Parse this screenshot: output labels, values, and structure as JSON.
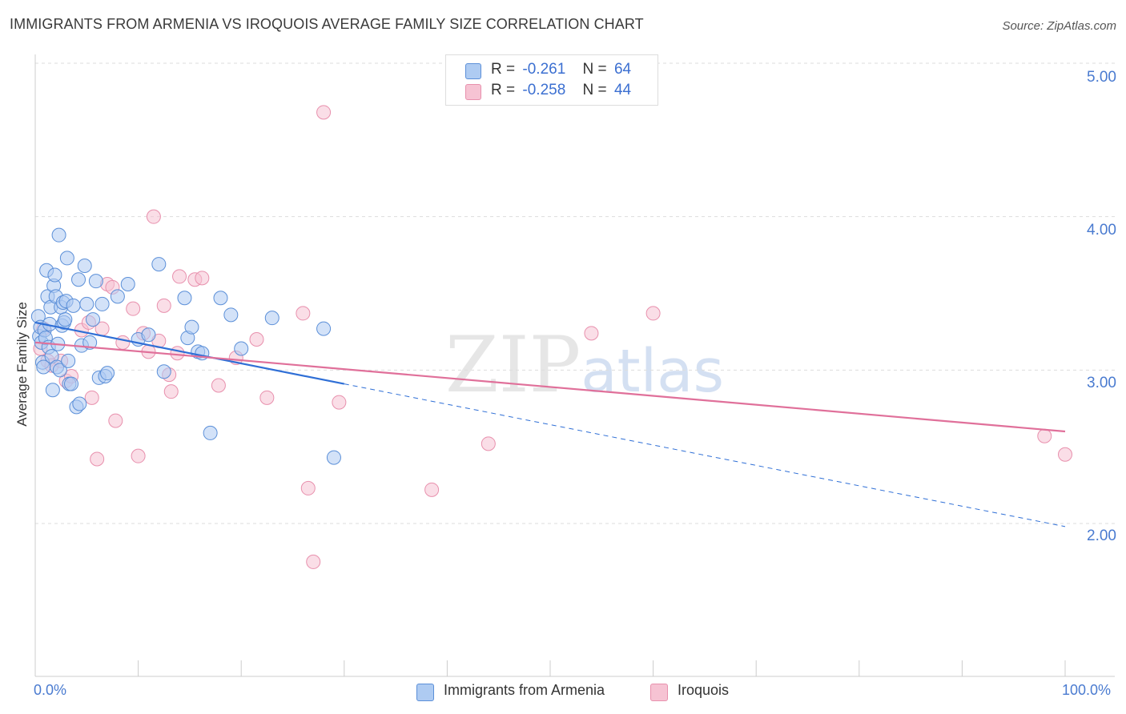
{
  "header": {
    "title": "IMMIGRANTS FROM ARMENIA VS IROQUOIS AVERAGE FAMILY SIZE CORRELATION CHART",
    "source": "Source: ZipAtlas.com"
  },
  "legend": {
    "rows": [
      {
        "r_label": "R =",
        "r_value": "-0.261",
        "n_label": "N =",
        "n_value": "64"
      },
      {
        "r_label": "R =",
        "r_value": "-0.258",
        "n_label": "N =",
        "n_value": "44"
      }
    ]
  },
  "watermark": {
    "zip": "ZIP",
    "atlas": "atlas"
  },
  "colors": {
    "blue_fill": "#aecbf2",
    "blue_stroke": "#5b8fd8",
    "blue_line": "#2f6fd6",
    "pink_fill": "#f6c3d3",
    "pink_stroke": "#e890ad",
    "pink_line": "#e0709a",
    "grid": "#dddddd",
    "axis_text": "#4a7bd0"
  },
  "chart_data": {
    "type": "scatter",
    "title": "IMMIGRANTS FROM ARMENIA VS IROQUOIS AVERAGE FAMILY SIZE CORRELATION CHART",
    "xlabel": "",
    "ylabel": "Average Family Size",
    "xlim": [
      0,
      100
    ],
    "ylim": [
      1.0,
      5.2
    ],
    "x_tick_labels": [
      "0.0%",
      "100.0%"
    ],
    "y_ticks": [
      2.0,
      3.0,
      4.0,
      5.0
    ],
    "y_tick_labels": [
      "2.00",
      "3.00",
      "4.00",
      "5.00"
    ],
    "grid": "horizontal dashed",
    "legend_position": "top-center",
    "series": [
      {
        "name": "Immigrants from Armenia",
        "color": "#aecbf2",
        "trend": {
          "x0": 0,
          "y0": 3.31,
          "x1": 30,
          "y1": 2.91,
          "dashed_to_x": 100,
          "dashed_to_y": 1.98
        },
        "points": [
          [
            0.3,
            3.35
          ],
          [
            0.4,
            3.22
          ],
          [
            0.5,
            3.28
          ],
          [
            0.6,
            3.18
          ],
          [
            0.7,
            3.05
          ],
          [
            0.8,
            3.02
          ],
          [
            0.9,
            3.26
          ],
          [
            1.0,
            3.21
          ],
          [
            1.1,
            3.65
          ],
          [
            1.2,
            3.48
          ],
          [
            1.3,
            3.15
          ],
          [
            1.4,
            3.3
          ],
          [
            1.5,
            3.41
          ],
          [
            1.6,
            3.09
          ],
          [
            1.7,
            2.87
          ],
          [
            1.8,
            3.55
          ],
          [
            1.9,
            3.62
          ],
          [
            2.0,
            3.48
          ],
          [
            2.1,
            3.02
          ],
          [
            2.2,
            3.17
          ],
          [
            2.3,
            3.88
          ],
          [
            2.4,
            3.0
          ],
          [
            2.5,
            3.41
          ],
          [
            2.6,
            3.29
          ],
          [
            2.7,
            3.44
          ],
          [
            2.8,
            3.31
          ],
          [
            2.9,
            3.33
          ],
          [
            3.0,
            3.45
          ],
          [
            3.1,
            3.73
          ],
          [
            3.2,
            3.06
          ],
          [
            3.3,
            2.91
          ],
          [
            3.5,
            2.91
          ],
          [
            3.7,
            3.42
          ],
          [
            4.0,
            2.76
          ],
          [
            4.2,
            3.59
          ],
          [
            4.3,
            2.78
          ],
          [
            4.5,
            3.16
          ],
          [
            4.8,
            3.68
          ],
          [
            5.0,
            3.43
          ],
          [
            5.3,
            3.18
          ],
          [
            5.6,
            3.33
          ],
          [
            5.9,
            3.58
          ],
          [
            6.2,
            2.95
          ],
          [
            6.5,
            3.43
          ],
          [
            6.8,
            2.96
          ],
          [
            7.0,
            2.98
          ],
          [
            8.0,
            3.48
          ],
          [
            9.0,
            3.56
          ],
          [
            10.0,
            3.2
          ],
          [
            11.0,
            3.23
          ],
          [
            12.0,
            3.69
          ],
          [
            12.5,
            2.99
          ],
          [
            14.5,
            3.47
          ],
          [
            14.8,
            3.21
          ],
          [
            15.2,
            3.28
          ],
          [
            15.8,
            3.12
          ],
          [
            16.2,
            3.11
          ],
          [
            17.0,
            2.59
          ],
          [
            18.0,
            3.47
          ],
          [
            19.0,
            3.36
          ],
          [
            20.0,
            3.14
          ],
          [
            23.0,
            3.34
          ],
          [
            28.0,
            3.27
          ],
          [
            29.0,
            2.43
          ]
        ]
      },
      {
        "name": "Iroquois",
        "color": "#f6c3d3",
        "trend": {
          "x0": 0,
          "y0": 3.18,
          "x1": 100,
          "y1": 2.6
        },
        "points": [
          [
            0.5,
            3.14
          ],
          [
            0.8,
            3.27
          ],
          [
            1.2,
            3.06
          ],
          [
            1.6,
            3.03
          ],
          [
            2.5,
            3.06
          ],
          [
            3.0,
            2.93
          ],
          [
            3.5,
            2.96
          ],
          [
            4.5,
            3.26
          ],
          [
            5.2,
            3.31
          ],
          [
            5.5,
            2.82
          ],
          [
            6.0,
            2.42
          ],
          [
            6.5,
            3.27
          ],
          [
            7.0,
            3.56
          ],
          [
            7.5,
            3.54
          ],
          [
            7.8,
            2.67
          ],
          [
            8.5,
            3.18
          ],
          [
            9.5,
            3.4
          ],
          [
            10.0,
            2.44
          ],
          [
            10.5,
            3.24
          ],
          [
            11.0,
            3.12
          ],
          [
            12.0,
            3.19
          ],
          [
            11.5,
            4.0
          ],
          [
            12.5,
            3.42
          ],
          [
            13.0,
            2.97
          ],
          [
            13.2,
            2.86
          ],
          [
            13.8,
            3.11
          ],
          [
            14.0,
            3.61
          ],
          [
            15.5,
            3.59
          ],
          [
            16.2,
            3.6
          ],
          [
            17.8,
            2.9
          ],
          [
            19.5,
            3.08
          ],
          [
            21.5,
            3.2
          ],
          [
            22.5,
            2.82
          ],
          [
            26.0,
            3.37
          ],
          [
            26.5,
            2.23
          ],
          [
            27.0,
            1.75
          ],
          [
            28.0,
            4.68
          ],
          [
            29.5,
            2.79
          ],
          [
            38.5,
            2.22
          ],
          [
            44.0,
            2.52
          ],
          [
            54.0,
            3.24
          ],
          [
            60.0,
            3.37
          ],
          [
            98.0,
            2.57
          ],
          [
            100.0,
            2.45
          ]
        ]
      }
    ]
  },
  "bottom_legend": {
    "series_a": "Immigrants from Armenia",
    "series_b": "Iroquois"
  }
}
